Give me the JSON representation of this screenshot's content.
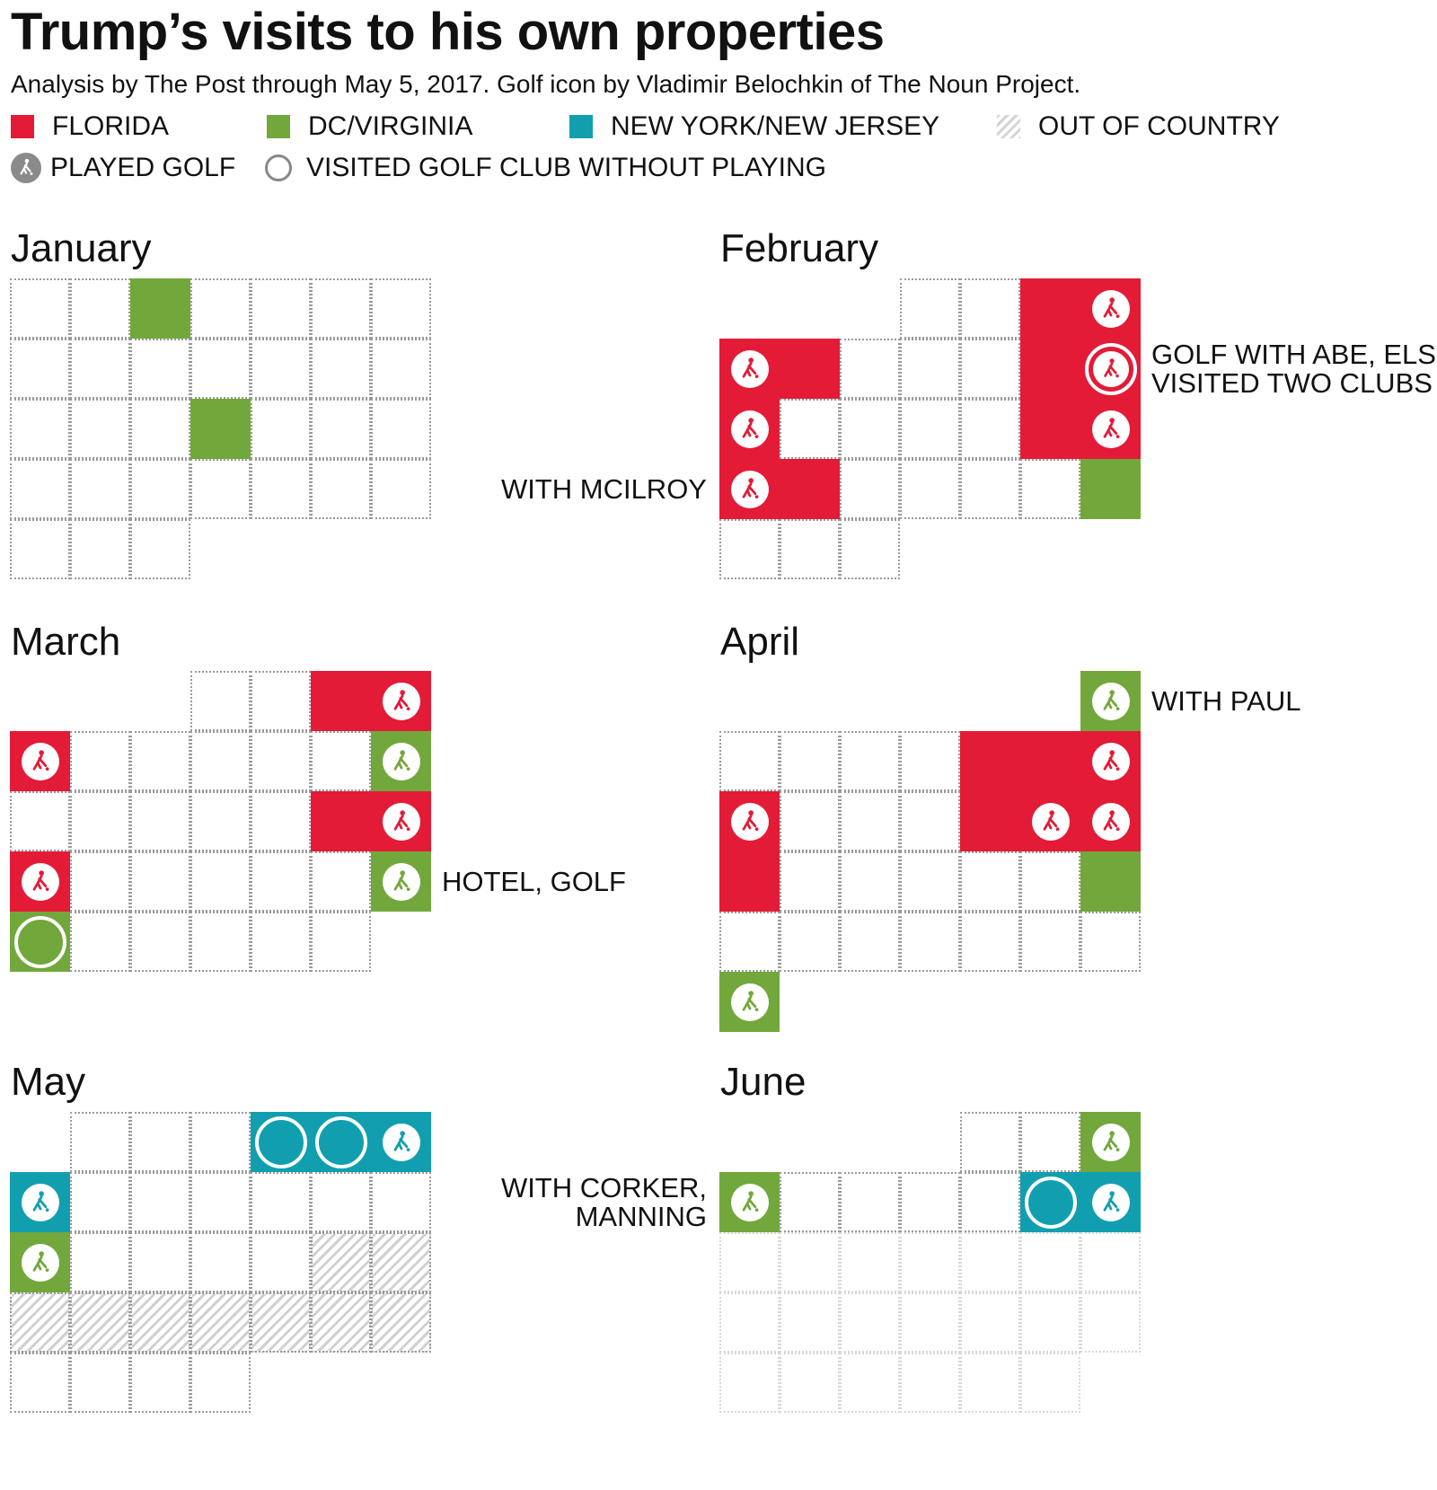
{
  "header": {
    "title": "Trump’s visits to his own properties",
    "subtitle": "Analysis by The Post through May 5, 2017. Golf icon by Vladimir Belochkin of The Noun Project."
  },
  "colors": {
    "florida": "#e31b37",
    "dcvirginia": "#72a83b",
    "nynj": "#119fb0",
    "legend_golf_icon": "#8a8a8a"
  },
  "legend": [
    {
      "key": "florida",
      "label": "FLORIDA"
    },
    {
      "key": "dcvirginia",
      "label": "DC/VIRGINIA"
    },
    {
      "key": "nynj",
      "label": "NEW YORK/NEW JERSEY"
    },
    {
      "key": "out",
      "label": "OUT OF  COUNTRY"
    },
    {
      "key": "golf",
      "label": "PLAYED GOLF",
      "icon": "golfer-icon"
    },
    {
      "key": "club",
      "label": "VISITED GOLF CLUB WITHOUT PLAYING",
      "icon": "ring-icon"
    }
  ],
  "chart_data": {
    "type": "calendar",
    "legend_placement": "top",
    "status_codes": {
      "F": "Florida",
      "D": "DC/Virginia",
      "N": "New York/New Jersey",
      "O": "Out of country"
    },
    "months": [
      {
        "name": "January",
        "first_weekday": 0,
        "days": 31,
        "future_from": null,
        "visits": [
          {
            "day": 3,
            "status": "D"
          },
          {
            "day": 18,
            "status": "D"
          }
        ]
      },
      {
        "name": "February",
        "first_weekday": 3,
        "days": 28,
        "future_from": null,
        "visits": [
          {
            "day": 3,
            "status": "F"
          },
          {
            "day": 4,
            "status": "F",
            "golf": true
          },
          {
            "day": 5,
            "status": "F",
            "golf": true
          },
          {
            "day": 6,
            "status": "F"
          },
          {
            "day": 10,
            "status": "F"
          },
          {
            "day": 11,
            "status": "F",
            "golf": true,
            "club": true
          },
          {
            "day": 12,
            "status": "F",
            "golf": true
          },
          {
            "day": 17,
            "status": "F"
          },
          {
            "day": 18,
            "status": "F",
            "golf": true
          },
          {
            "day": 19,
            "status": "F",
            "golf": true
          },
          {
            "day": 20,
            "status": "F"
          },
          {
            "day": 25,
            "status": "D"
          }
        ]
      },
      {
        "name": "March",
        "first_weekday": 3,
        "days": 31,
        "future_from": null,
        "visits": [
          {
            "day": 3,
            "status": "F"
          },
          {
            "day": 4,
            "status": "F",
            "golf": true
          },
          {
            "day": 5,
            "status": "F",
            "golf": true
          },
          {
            "day": 11,
            "status": "D",
            "golf": true
          },
          {
            "day": 17,
            "status": "F"
          },
          {
            "day": 18,
            "status": "F",
            "golf": true
          },
          {
            "day": 19,
            "status": "F",
            "golf": true
          },
          {
            "day": 25,
            "status": "D",
            "golf": true
          },
          {
            "day": 26,
            "status": "D",
            "club": true
          }
        ]
      },
      {
        "name": "April",
        "first_weekday": 6,
        "days": 30,
        "future_from": null,
        "visits": [
          {
            "day": 1,
            "status": "D",
            "golf": true
          },
          {
            "day": 6,
            "status": "F"
          },
          {
            "day": 7,
            "status": "F"
          },
          {
            "day": 8,
            "status": "F",
            "golf": true
          },
          {
            "day": 9,
            "status": "F",
            "golf": true
          },
          {
            "day": 13,
            "status": "F"
          },
          {
            "day": 14,
            "status": "F",
            "golf": true
          },
          {
            "day": 15,
            "status": "F",
            "golf": true
          },
          {
            "day": 16,
            "status": "F"
          },
          {
            "day": 22,
            "status": "D"
          },
          {
            "day": 30,
            "status": "D",
            "golf": true
          }
        ]
      },
      {
        "name": "May",
        "first_weekday": 1,
        "days": 31,
        "future_from": null,
        "visits": [
          {
            "day": 4,
            "status": "N",
            "club": true
          },
          {
            "day": 5,
            "status": "N",
            "club": true
          },
          {
            "day": 6,
            "status": "N",
            "golf": true
          },
          {
            "day": 7,
            "status": "N",
            "golf": true
          },
          {
            "day": 14,
            "status": "D",
            "golf": true
          },
          {
            "day": 19,
            "status": "O"
          },
          {
            "day": 20,
            "status": "O"
          },
          {
            "day": 21,
            "status": "O"
          },
          {
            "day": 22,
            "status": "O"
          },
          {
            "day": 23,
            "status": "O"
          },
          {
            "day": 24,
            "status": "O"
          },
          {
            "day": 25,
            "status": "O"
          },
          {
            "day": 26,
            "status": "O"
          },
          {
            "day": 27,
            "status": "O"
          }
        ]
      },
      {
        "name": "June",
        "first_weekday": 4,
        "days": 30,
        "future_from": 10,
        "visits": [
          {
            "day": 3,
            "status": "D",
            "golf": true
          },
          {
            "day": 4,
            "status": "D",
            "golf": true
          },
          {
            "day": 9,
            "status": "N",
            "club": true
          },
          {
            "day": 10,
            "status": "N",
            "golf": true
          }
        ]
      }
    ],
    "annotations": [
      {
        "month": "February",
        "day": 11,
        "text": "GOLF WITH ABE, ELS\nVISITED TWO CLUBS",
        "side": "right"
      },
      {
        "month": "February",
        "day": 19,
        "text": "WITH McILROY",
        "side": "left"
      },
      {
        "month": "March",
        "day": 25,
        "text": "HOTEL, GOLF",
        "side": "right"
      },
      {
        "month": "April",
        "day": 1,
        "text": "WITH PAUL",
        "side": "right"
      },
      {
        "month": "June",
        "day": 4,
        "text": "WITH CORKER,\nMANNING",
        "side": "left"
      }
    ]
  }
}
